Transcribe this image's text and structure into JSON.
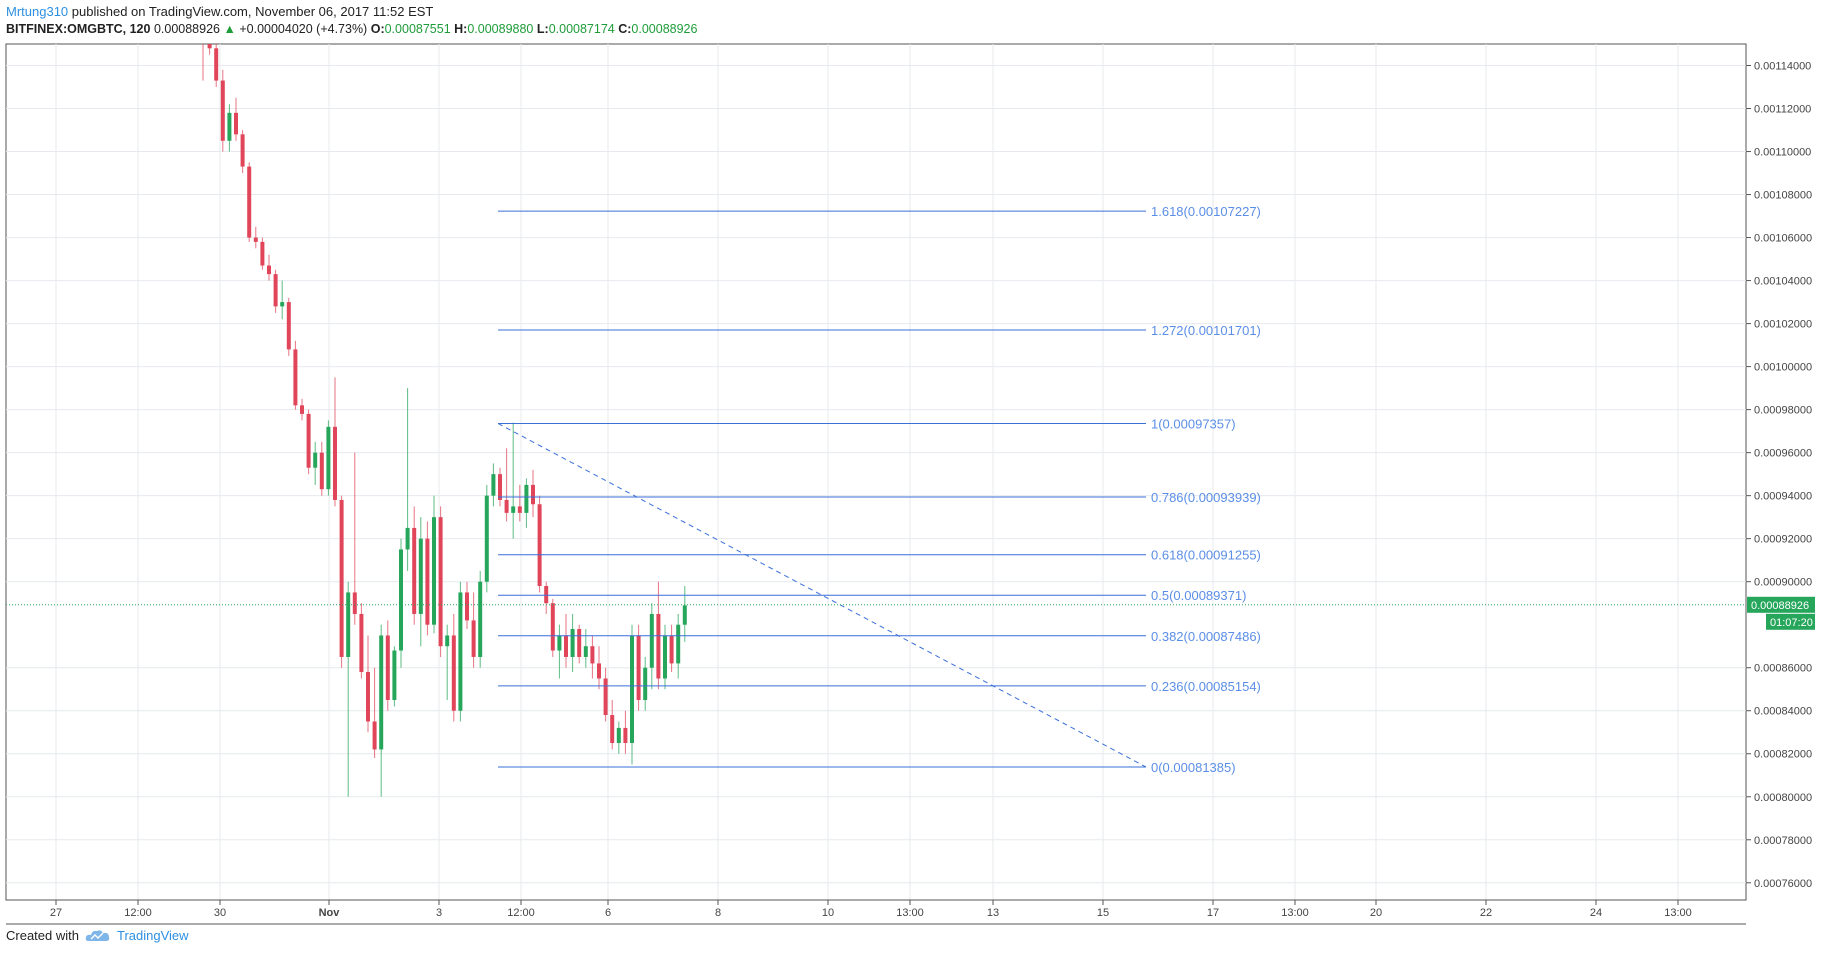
{
  "header": {
    "author": "Mrtung310",
    "published_text": "published on TradingView.com, November 06, 2017 11:52 EST",
    "symbol": "BITFINEX:OMGBTC, 120",
    "last": "0.00088926",
    "change": "+0.00004020 (+4.73%)",
    "o_label": "O:",
    "o_value": "0.00087551",
    "h_label": "H:",
    "h_value": "0.00089880",
    "l_label": "L:",
    "l_value": "0.00087174",
    "c_label": "C:",
    "c_value": "0.00088926",
    "up_arrow_icon": "triangle-up-icon"
  },
  "footer": {
    "created_with": "Created with",
    "brand": "TradingView",
    "logo_icon": "tradingview-cloud-icon"
  },
  "colors": {
    "up": "#26a65b",
    "down": "#e0455a",
    "fib": "#3a6fd8",
    "fib_text": "#5b8ee6",
    "grid": "#e6eaee",
    "price_tag": "#26a65b"
  },
  "chart_data": {
    "type": "candlestick",
    "x_ticks": [
      "27",
      "12:00",
      "30",
      "Nov",
      "3",
      "12:00",
      "6",
      "8",
      "10",
      "13:00",
      "13",
      "15",
      "17",
      "13:00",
      "20",
      "22",
      "24",
      "13:00"
    ],
    "y_ticks": [
      "0.00114000",
      "0.00112000",
      "0.00110000",
      "0.00108000",
      "0.00106000",
      "0.00104000",
      "0.00102000",
      "0.00100000",
      "0.00098000",
      "0.00096000",
      "0.00094000",
      "0.00092000",
      "0.00090000",
      "0.00086000",
      "0.00084000",
      "0.00082000",
      "0.00080000",
      "0.00078000",
      "0.00076000"
    ],
    "ylim": [
      0.000752,
      0.00115
    ],
    "current_price": "0.00088926",
    "countdown": "01:07:20",
    "fib_levels": [
      {
        "ratio": 1.618,
        "price": 0.00107227,
        "label": "1.618(0.00107227)"
      },
      {
        "ratio": 1.272,
        "price": 0.00101701,
        "label": "1.272(0.00101701)"
      },
      {
        "ratio": 1,
        "price": 0.00097357,
        "label": "1(0.00097357)"
      },
      {
        "ratio": 0.786,
        "price": 0.00093939,
        "label": "0.786(0.00093939)"
      },
      {
        "ratio": 0.618,
        "price": 0.00091255,
        "label": "0.618(0.00091255)"
      },
      {
        "ratio": 0.5,
        "price": 0.00089371,
        "label": "0.5(0.00089371)"
      },
      {
        "ratio": 0.382,
        "price": 0.00087486,
        "label": "0.382(0.00087486)"
      },
      {
        "ratio": 0.236,
        "price": 0.00085154,
        "label": "0.236(0.00085154)"
      },
      {
        "ratio": 0,
        "price": 0.00081385,
        "label": "0(0.00081385)"
      }
    ],
    "candles": [
      {
        "o": 0.00116,
        "h": 0.00116,
        "l": 0.001133,
        "c": 0.001155
      },
      {
        "o": 0.00115,
        "h": 0.00116,
        "l": 0.001145,
        "c": 0.001148
      },
      {
        "o": 0.001148,
        "h": 0.00115,
        "l": 0.00113,
        "c": 0.001133
      },
      {
        "o": 0.001133,
        "h": 0.001138,
        "l": 0.0011,
        "c": 0.001105
      },
      {
        "o": 0.001105,
        "h": 0.001122,
        "l": 0.0011,
        "c": 0.001118
      },
      {
        "o": 0.001118,
        "h": 0.001125,
        "l": 0.001105,
        "c": 0.001108
      },
      {
        "o": 0.001108,
        "h": 0.00111,
        "l": 0.00109,
        "c": 0.001093
      },
      {
        "o": 0.001093,
        "h": 0.001095,
        "l": 0.001058,
        "c": 0.00106
      },
      {
        "o": 0.00106,
        "h": 0.001065,
        "l": 0.001055,
        "c": 0.001058
      },
      {
        "o": 0.001058,
        "h": 0.00106,
        "l": 0.001045,
        "c": 0.001047
      },
      {
        "o": 0.001047,
        "h": 0.001052,
        "l": 0.00104,
        "c": 0.001043
      },
      {
        "o": 0.001043,
        "h": 0.001045,
        "l": 0.001025,
        "c": 0.001028
      },
      {
        "o": 0.001028,
        "h": 0.00104,
        "l": 0.001022,
        "c": 0.00103
      },
      {
        "o": 0.00103,
        "h": 0.001032,
        "l": 0.001005,
        "c": 0.001008
      },
      {
        "o": 0.001008,
        "h": 0.001012,
        "l": 0.00098,
        "c": 0.000982
      },
      {
        "o": 0.000982,
        "h": 0.000985,
        "l": 0.000975,
        "c": 0.000978
      },
      {
        "o": 0.000978,
        "h": 0.00098,
        "l": 0.00095,
        "c": 0.000953
      },
      {
        "o": 0.000953,
        "h": 0.000965,
        "l": 0.000945,
        "c": 0.00096
      },
      {
        "o": 0.00096,
        "h": 0.000965,
        "l": 0.00094,
        "c": 0.000943
      },
      {
        "o": 0.000943,
        "h": 0.000975,
        "l": 0.00094,
        "c": 0.000972
      },
      {
        "o": 0.000972,
        "h": 0.000995,
        "l": 0.000935,
        "c": 0.000938
      },
      {
        "o": 0.000938,
        "h": 0.00094,
        "l": 0.00086,
        "c": 0.000865
      },
      {
        "o": 0.000865,
        "h": 0.0009,
        "l": 0.0008,
        "c": 0.000895
      },
      {
        "o": 0.000895,
        "h": 0.00096,
        "l": 0.00088,
        "c": 0.000885
      },
      {
        "o": 0.000885,
        "h": 0.00089,
        "l": 0.000855,
        "c": 0.000858
      },
      {
        "o": 0.000858,
        "h": 0.000875,
        "l": 0.00083,
        "c": 0.000835
      },
      {
        "o": 0.000835,
        "h": 0.00086,
        "l": 0.000818,
        "c": 0.000822
      },
      {
        "o": 0.000822,
        "h": 0.00088,
        "l": 0.0008,
        "c": 0.000875
      },
      {
        "o": 0.000875,
        "h": 0.000882,
        "l": 0.00084,
        "c": 0.000845
      },
      {
        "o": 0.000845,
        "h": 0.00087,
        "l": 0.000842,
        "c": 0.000868
      },
      {
        "o": 0.000868,
        "h": 0.00092,
        "l": 0.00086,
        "c": 0.000915
      },
      {
        "o": 0.000915,
        "h": 0.00099,
        "l": 0.000905,
        "c": 0.000925
      },
      {
        "o": 0.000925,
        "h": 0.000935,
        "l": 0.00088,
        "c": 0.000885
      },
      {
        "o": 0.000885,
        "h": 0.00093,
        "l": 0.00087,
        "c": 0.00092
      },
      {
        "o": 0.00092,
        "h": 0.000928,
        "l": 0.000875,
        "c": 0.00088
      },
      {
        "o": 0.00088,
        "h": 0.00094,
        "l": 0.000876,
        "c": 0.00093
      },
      {
        "o": 0.00093,
        "h": 0.000935,
        "l": 0.000865,
        "c": 0.00087
      },
      {
        "o": 0.00087,
        "h": 0.00088,
        "l": 0.000845,
        "c": 0.000875
      },
      {
        "o": 0.000875,
        "h": 0.000885,
        "l": 0.000835,
        "c": 0.00084
      },
      {
        "o": 0.00084,
        "h": 0.0009,
        "l": 0.000835,
        "c": 0.000895
      },
      {
        "o": 0.000895,
        "h": 0.0009,
        "l": 0.000878,
        "c": 0.000882
      },
      {
        "o": 0.000882,
        "h": 0.000895,
        "l": 0.00086,
        "c": 0.000865
      },
      {
        "o": 0.000865,
        "h": 0.000905,
        "l": 0.00086,
        "c": 0.0009
      },
      {
        "o": 0.0009,
        "h": 0.000945,
        "l": 0.000895,
        "c": 0.00094
      },
      {
        "o": 0.00094,
        "h": 0.000955,
        "l": 0.000935,
        "c": 0.00095
      },
      {
        "o": 0.00095,
        "h": 0.000953,
        "l": 0.000935,
        "c": 0.000938
      },
      {
        "o": 0.000938,
        "h": 0.000962,
        "l": 0.000928,
        "c": 0.000932
      },
      {
        "o": 0.000932,
        "h": 0.000974,
        "l": 0.00092,
        "c": 0.000935
      },
      {
        "o": 0.000935,
        "h": 0.000945,
        "l": 0.000928,
        "c": 0.000932
      },
      {
        "o": 0.000932,
        "h": 0.000948,
        "l": 0.000925,
        "c": 0.000945
      },
      {
        "o": 0.000945,
        "h": 0.000952,
        "l": 0.00093,
        "c": 0.000936
      },
      {
        "o": 0.000936,
        "h": 0.00094,
        "l": 0.000895,
        "c": 0.000898
      },
      {
        "o": 0.000898,
        "h": 0.0009,
        "l": 0.000885,
        "c": 0.00089
      },
      {
        "o": 0.00089,
        "h": 0.000892,
        "l": 0.000865,
        "c": 0.000868
      },
      {
        "o": 0.000868,
        "h": 0.00088,
        "l": 0.000855,
        "c": 0.000875
      },
      {
        "o": 0.000875,
        "h": 0.000885,
        "l": 0.00086,
        "c": 0.000865
      },
      {
        "o": 0.000865,
        "h": 0.000885,
        "l": 0.000858,
        "c": 0.000878
      },
      {
        "o": 0.000878,
        "h": 0.00088,
        "l": 0.000862,
        "c": 0.000865
      },
      {
        "o": 0.000865,
        "h": 0.000878,
        "l": 0.00086,
        "c": 0.00087
      },
      {
        "o": 0.00087,
        "h": 0.000875,
        "l": 0.000855,
        "c": 0.000862
      },
      {
        "o": 0.000862,
        "h": 0.00087,
        "l": 0.00085,
        "c": 0.000855
      },
      {
        "o": 0.000855,
        "h": 0.00086,
        "l": 0.000835,
        "c": 0.000838
      },
      {
        "o": 0.000838,
        "h": 0.000845,
        "l": 0.000822,
        "c": 0.000825
      },
      {
        "o": 0.000825,
        "h": 0.000835,
        "l": 0.00082,
        "c": 0.000832
      },
      {
        "o": 0.000832,
        "h": 0.00084,
        "l": 0.00082,
        "c": 0.000825
      },
      {
        "o": 0.000825,
        "h": 0.00088,
        "l": 0.000815,
        "c": 0.000875
      },
      {
        "o": 0.000875,
        "h": 0.00088,
        "l": 0.00084,
        "c": 0.000845
      },
      {
        "o": 0.000845,
        "h": 0.000865,
        "l": 0.00084,
        "c": 0.00086
      },
      {
        "o": 0.00086,
        "h": 0.00089,
        "l": 0.00085,
        "c": 0.000885
      },
      {
        "o": 0.000885,
        "h": 0.0009,
        "l": 0.00085,
        "c": 0.000855
      },
      {
        "o": 0.000855,
        "h": 0.00088,
        "l": 0.00085,
        "c": 0.000875
      },
      {
        "o": 0.000875,
        "h": 0.00088,
        "l": 0.000858,
        "c": 0.000862
      },
      {
        "o": 0.000862,
        "h": 0.000885,
        "l": 0.000855,
        "c": 0.00088
      },
      {
        "o": 0.00088,
        "h": 0.000898,
        "l": 0.000872,
        "c": 0.000889
      }
    ]
  }
}
